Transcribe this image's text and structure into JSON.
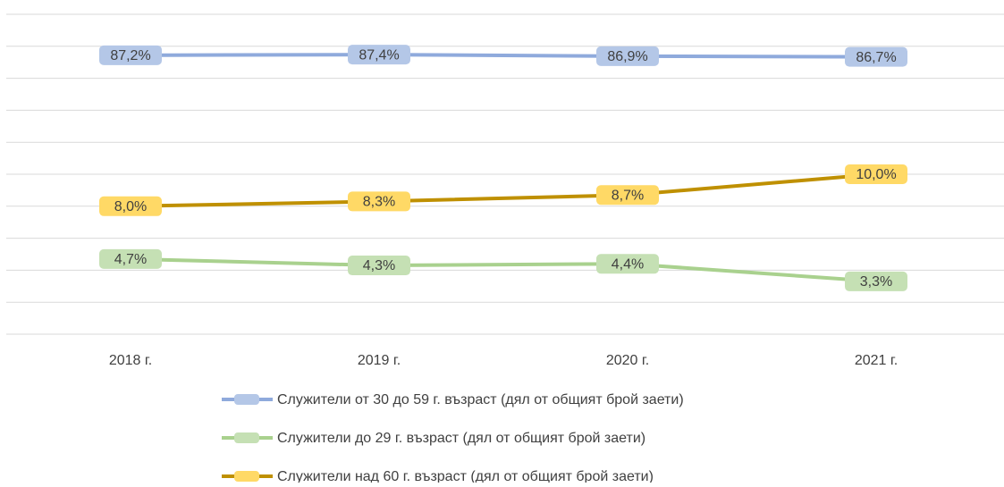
{
  "chart_data": {
    "type": "line",
    "categories": [
      "2018 г.",
      "2019 г.",
      "2020 г.",
      "2021 г."
    ],
    "series": [
      {
        "name": "Служители от 30 до 59 г. възраст (дял от общият брой заети)",
        "color": "#8faadc",
        "label_fill": "#b4c7e7",
        "axis": "y2",
        "values": [
          87.2,
          87.4,
          86.9,
          86.7
        ],
        "value_labels": [
          "87,2%",
          "87,4%",
          "86,9%",
          "86,7%"
        ]
      },
      {
        "name": "Служители до 29 г. възраст (дял от общият брой заети)",
        "color": "#a9d18e",
        "label_fill": "#c5e0b4",
        "values": [
          4.7,
          4.3,
          4.4,
          3.3
        ],
        "value_labels": [
          "4,7%",
          "4,3%",
          "4,4%",
          "3,3%"
        ]
      },
      {
        "name": "Служители над 60 г. възраст (дял от общият брой заети)",
        "color": "#bf9000",
        "label_fill": "#ffd966",
        "values": [
          8.0,
          8.3,
          8.7,
          10.0
        ],
        "value_labels": [
          "8,0%",
          "8,3%",
          "8,7%",
          "10,0%"
        ]
      }
    ],
    "ylim": [
      0,
      20
    ],
    "yticks": [
      0,
      2,
      4,
      6,
      8,
      10,
      12,
      14,
      16,
      18,
      20
    ],
    "y2lim": [
      0,
      100
    ],
    "grid": true,
    "legend": "bottom"
  }
}
